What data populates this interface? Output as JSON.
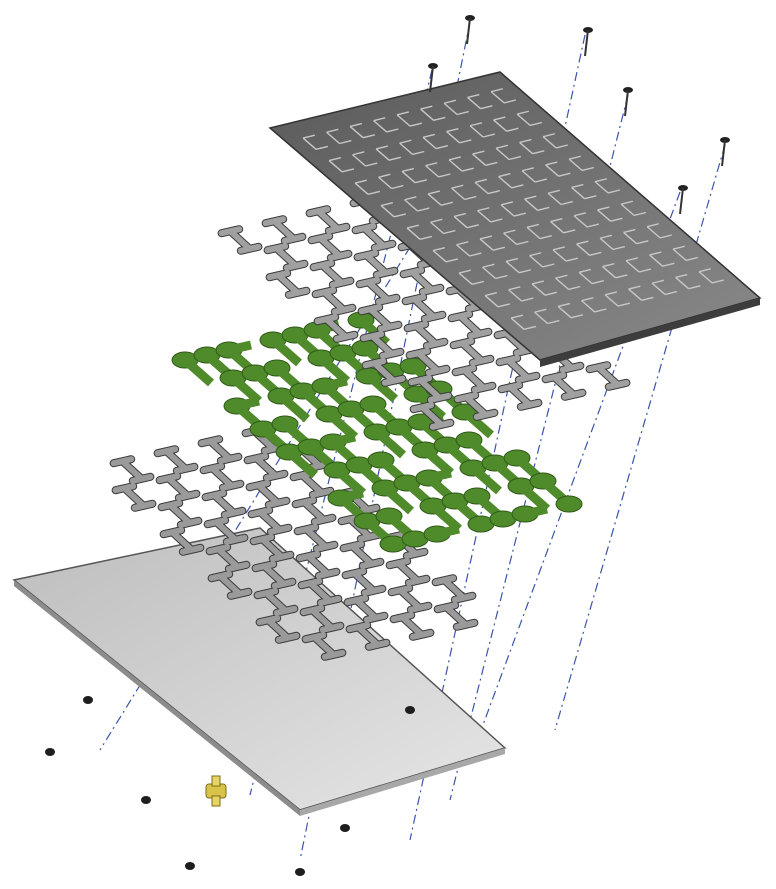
{
  "figure": {
    "layers": [
      {
        "id": "top-plate",
        "color": "#6e6e6e"
      },
      {
        "id": "upper-tube-network",
        "color": "#9a9a9a"
      },
      {
        "id": "green-fractal-layer",
        "color": "#4f8a2b"
      },
      {
        "id": "lower-tube-network",
        "color": "#9a9a9a"
      },
      {
        "id": "bottom-plate",
        "color": "#c9c9c9"
      }
    ],
    "fastener_count_top": 6,
    "fastener_count_bottom": 7,
    "fitting": {
      "color": "#d8c34a"
    },
    "assembly_line_color": "#3a55a8"
  }
}
